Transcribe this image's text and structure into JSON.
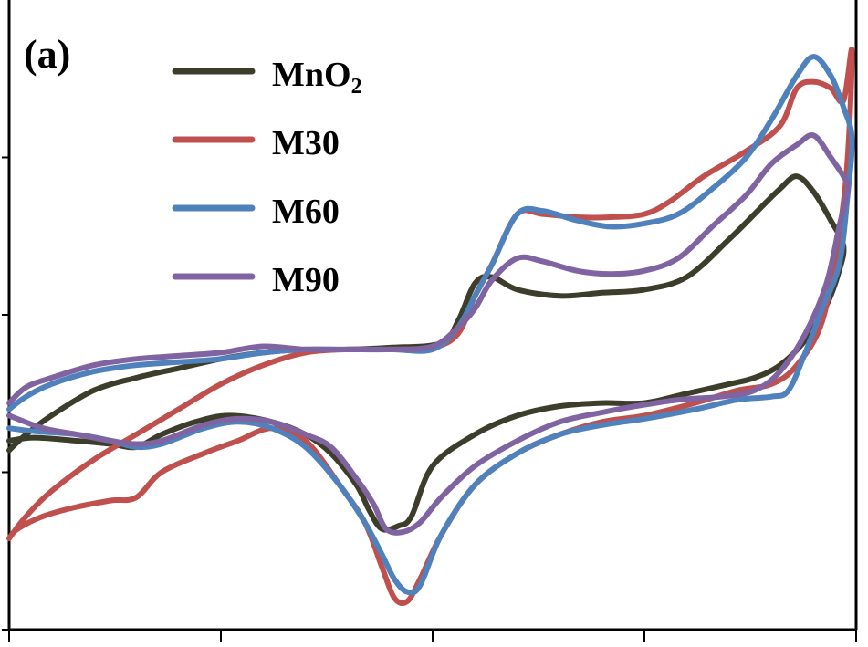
{
  "chart_data": {
    "type": "line",
    "panel_label": "(a)",
    "title": "",
    "xlabel": "",
    "ylabel": "",
    "xlim": [
      0,
      100
    ],
    "ylim": [
      0,
      100
    ],
    "x_ticks": [
      0,
      25,
      50,
      75,
      100
    ],
    "y_ticks": [
      0,
      25,
      50,
      75
    ],
    "grid": false,
    "legend_position": "top-left",
    "series": [
      {
        "name": "MnO2",
        "legend_label": "MnO",
        "legend_sub": "2",
        "color": "#3d3d2b",
        "points": [
          [
            0,
            28.5
          ],
          [
            2,
            31
          ],
          [
            5,
            34
          ],
          [
            10,
            38
          ],
          [
            15,
            40
          ],
          [
            20,
            41.5
          ],
          [
            25,
            43
          ],
          [
            30,
            44
          ],
          [
            35,
            44.5
          ],
          [
            40,
            44.5
          ],
          [
            45,
            44.8
          ],
          [
            51,
            45.5
          ],
          [
            53,
            49
          ],
          [
            55,
            55
          ],
          [
            57,
            56
          ],
          [
            60,
            54
          ],
          [
            65,
            53
          ],
          [
            70,
            53.5
          ],
          [
            75,
            54
          ],
          [
            80,
            56
          ],
          [
            85,
            62
          ],
          [
            88,
            66
          ],
          [
            91,
            70
          ],
          [
            93,
            72
          ],
          [
            95,
            69.5
          ],
          [
            97,
            65
          ],
          [
            98.5,
            61
          ],
          [
            98,
            57
          ],
          [
            96.5,
            51.5
          ],
          [
            94,
            46
          ],
          [
            91,
            42
          ],
          [
            88,
            40
          ],
          [
            85,
            39
          ],
          [
            80,
            37.5
          ],
          [
            75,
            36
          ],
          [
            70,
            36
          ],
          [
            65,
            35.5
          ],
          [
            60,
            34
          ],
          [
            55,
            31
          ],
          [
            50,
            26
          ],
          [
            47.5,
            18
          ],
          [
            46,
            16.5
          ],
          [
            44,
            16
          ],
          [
            42.5,
            19
          ],
          [
            41,
            23
          ],
          [
            38,
            28
          ],
          [
            35,
            31
          ],
          [
            31,
            33
          ],
          [
            26,
            34
          ],
          [
            22,
            33
          ],
          [
            18,
            31
          ],
          [
            15,
            29
          ],
          [
            12,
            29.5
          ],
          [
            8,
            30
          ],
          [
            3,
            30.5
          ],
          [
            0,
            30
          ]
        ]
      },
      {
        "name": "M30",
        "legend_label": "M30",
        "legend_sub": "",
        "color": "#c0504d",
        "points": [
          [
            0,
            14.5
          ],
          [
            2,
            18
          ],
          [
            5,
            22
          ],
          [
            10,
            27
          ],
          [
            15,
            31
          ],
          [
            20,
            35
          ],
          [
            25,
            39
          ],
          [
            30,
            42
          ],
          [
            35,
            44
          ],
          [
            40,
            44.5
          ],
          [
            45,
            44.5
          ],
          [
            50,
            44.8
          ],
          [
            53,
            47
          ],
          [
            55,
            53
          ],
          [
            57,
            58
          ],
          [
            60,
            66
          ],
          [
            63,
            66
          ],
          [
            67,
            65.5
          ],
          [
            71,
            65.5
          ],
          [
            75,
            66
          ],
          [
            78,
            68
          ],
          [
            82,
            72
          ],
          [
            87,
            76
          ],
          [
            91,
            80
          ],
          [
            93,
            86
          ],
          [
            95,
            87
          ],
          [
            97,
            86
          ],
          [
            98.5,
            84
          ],
          [
            99.5,
            92
          ],
          [
            99,
            75
          ],
          [
            98,
            63
          ],
          [
            96,
            49
          ],
          [
            93,
            42
          ],
          [
            90,
            39
          ],
          [
            86,
            38
          ],
          [
            81,
            36
          ],
          [
            75,
            34
          ],
          [
            70,
            33
          ],
          [
            65,
            31
          ],
          [
            60,
            28
          ],
          [
            55,
            23
          ],
          [
            51,
            15
          ],
          [
            48.5,
            8
          ],
          [
            47,
            4.5
          ],
          [
            45.5,
            5
          ],
          [
            44,
            10
          ],
          [
            42,
            17
          ],
          [
            39,
            23
          ],
          [
            35,
            30
          ],
          [
            31,
            32
          ],
          [
            27,
            30
          ],
          [
            23,
            28
          ],
          [
            18,
            25
          ],
          [
            15,
            21
          ],
          [
            12,
            20.5
          ],
          [
            8,
            19.5
          ],
          [
            4,
            18
          ],
          [
            1,
            16
          ],
          [
            0,
            14.5
          ]
        ]
      },
      {
        "name": "M60",
        "legend_label": "M60",
        "legend_sub": "",
        "color": "#4f81bd",
        "points": [
          [
            0,
            35
          ],
          [
            2,
            37
          ],
          [
            5,
            39
          ],
          [
            10,
            41
          ],
          [
            15,
            42
          ],
          [
            20,
            42.5
          ],
          [
            25,
            43
          ],
          [
            30,
            44
          ],
          [
            35,
            44.5
          ],
          [
            40,
            44.5
          ],
          [
            45,
            44.5
          ],
          [
            50,
            44.5
          ],
          [
            53,
            48
          ],
          [
            55,
            53
          ],
          [
            57,
            58
          ],
          [
            60,
            66
          ],
          [
            63,
            66.5
          ],
          [
            67,
            65
          ],
          [
            71,
            64
          ],
          [
            75,
            64.5
          ],
          [
            79,
            66
          ],
          [
            83,
            70
          ],
          [
            87,
            75
          ],
          [
            90,
            81
          ],
          [
            93,
            88
          ],
          [
            95,
            91
          ],
          [
            97,
            88
          ],
          [
            98.5,
            83
          ],
          [
            99.5,
            78
          ],
          [
            99,
            69
          ],
          [
            98,
            58
          ],
          [
            96,
            51
          ],
          [
            94,
            44
          ],
          [
            92,
            38
          ],
          [
            90,
            37
          ],
          [
            86,
            36.5
          ],
          [
            81,
            35
          ],
          [
            75,
            33.5
          ],
          [
            70,
            32.5
          ],
          [
            65,
            31
          ],
          [
            60,
            28
          ],
          [
            55,
            23
          ],
          [
            51,
            15
          ],
          [
            48.5,
            7
          ],
          [
            47,
            6
          ],
          [
            45.5,
            8
          ],
          [
            44,
            12
          ],
          [
            42,
            17
          ],
          [
            39,
            23
          ],
          [
            35,
            29
          ],
          [
            31,
            32
          ],
          [
            27,
            33
          ],
          [
            23,
            32
          ],
          [
            18,
            29.5
          ],
          [
            15,
            29
          ],
          [
            12,
            30
          ],
          [
            8,
            31
          ],
          [
            3,
            31.5
          ],
          [
            0,
            32
          ]
        ]
      },
      {
        "name": "M90",
        "legend_label": "M90",
        "legend_sub": "",
        "color": "#8064a2",
        "points": [
          [
            0,
            36
          ],
          [
            2,
            38.5
          ],
          [
            5,
            40
          ],
          [
            10,
            42
          ],
          [
            15,
            43
          ],
          [
            20,
            43.5
          ],
          [
            25,
            44
          ],
          [
            30,
            45
          ],
          [
            35,
            44.5
          ],
          [
            40,
            44.5
          ],
          [
            45,
            44.5
          ],
          [
            50,
            45
          ],
          [
            53,
            48
          ],
          [
            55,
            51
          ],
          [
            57,
            55.5
          ],
          [
            60,
            59
          ],
          [
            63,
            58.5
          ],
          [
            67,
            57
          ],
          [
            71,
            56.5
          ],
          [
            75,
            57
          ],
          [
            79,
            59
          ],
          [
            83,
            64
          ],
          [
            87,
            69
          ],
          [
            90,
            74
          ],
          [
            93,
            77
          ],
          [
            95,
            78.5
          ],
          [
            97,
            75
          ],
          [
            98.5,
            72
          ],
          [
            99,
            70
          ],
          [
            98,
            64
          ],
          [
            96.5,
            55
          ],
          [
            94,
            47
          ],
          [
            91,
            41
          ],
          [
            88,
            38
          ],
          [
            84,
            37
          ],
          [
            79,
            36.5
          ],
          [
            74,
            35.5
          ],
          [
            70,
            34.5
          ],
          [
            65,
            33
          ],
          [
            60,
            30
          ],
          [
            55,
            26
          ],
          [
            51,
            21
          ],
          [
            48.5,
            17
          ],
          [
            46.5,
            15.5
          ],
          [
            44.5,
            16
          ],
          [
            43,
            20
          ],
          [
            41,
            24
          ],
          [
            38,
            29
          ],
          [
            35,
            31
          ],
          [
            31,
            33
          ],
          [
            27,
            33.5
          ],
          [
            23,
            32.5
          ],
          [
            18,
            30
          ],
          [
            15,
            29.5
          ],
          [
            12,
            30
          ],
          [
            8,
            31
          ],
          [
            4,
            32
          ],
          [
            0,
            34
          ]
        ]
      }
    ]
  }
}
